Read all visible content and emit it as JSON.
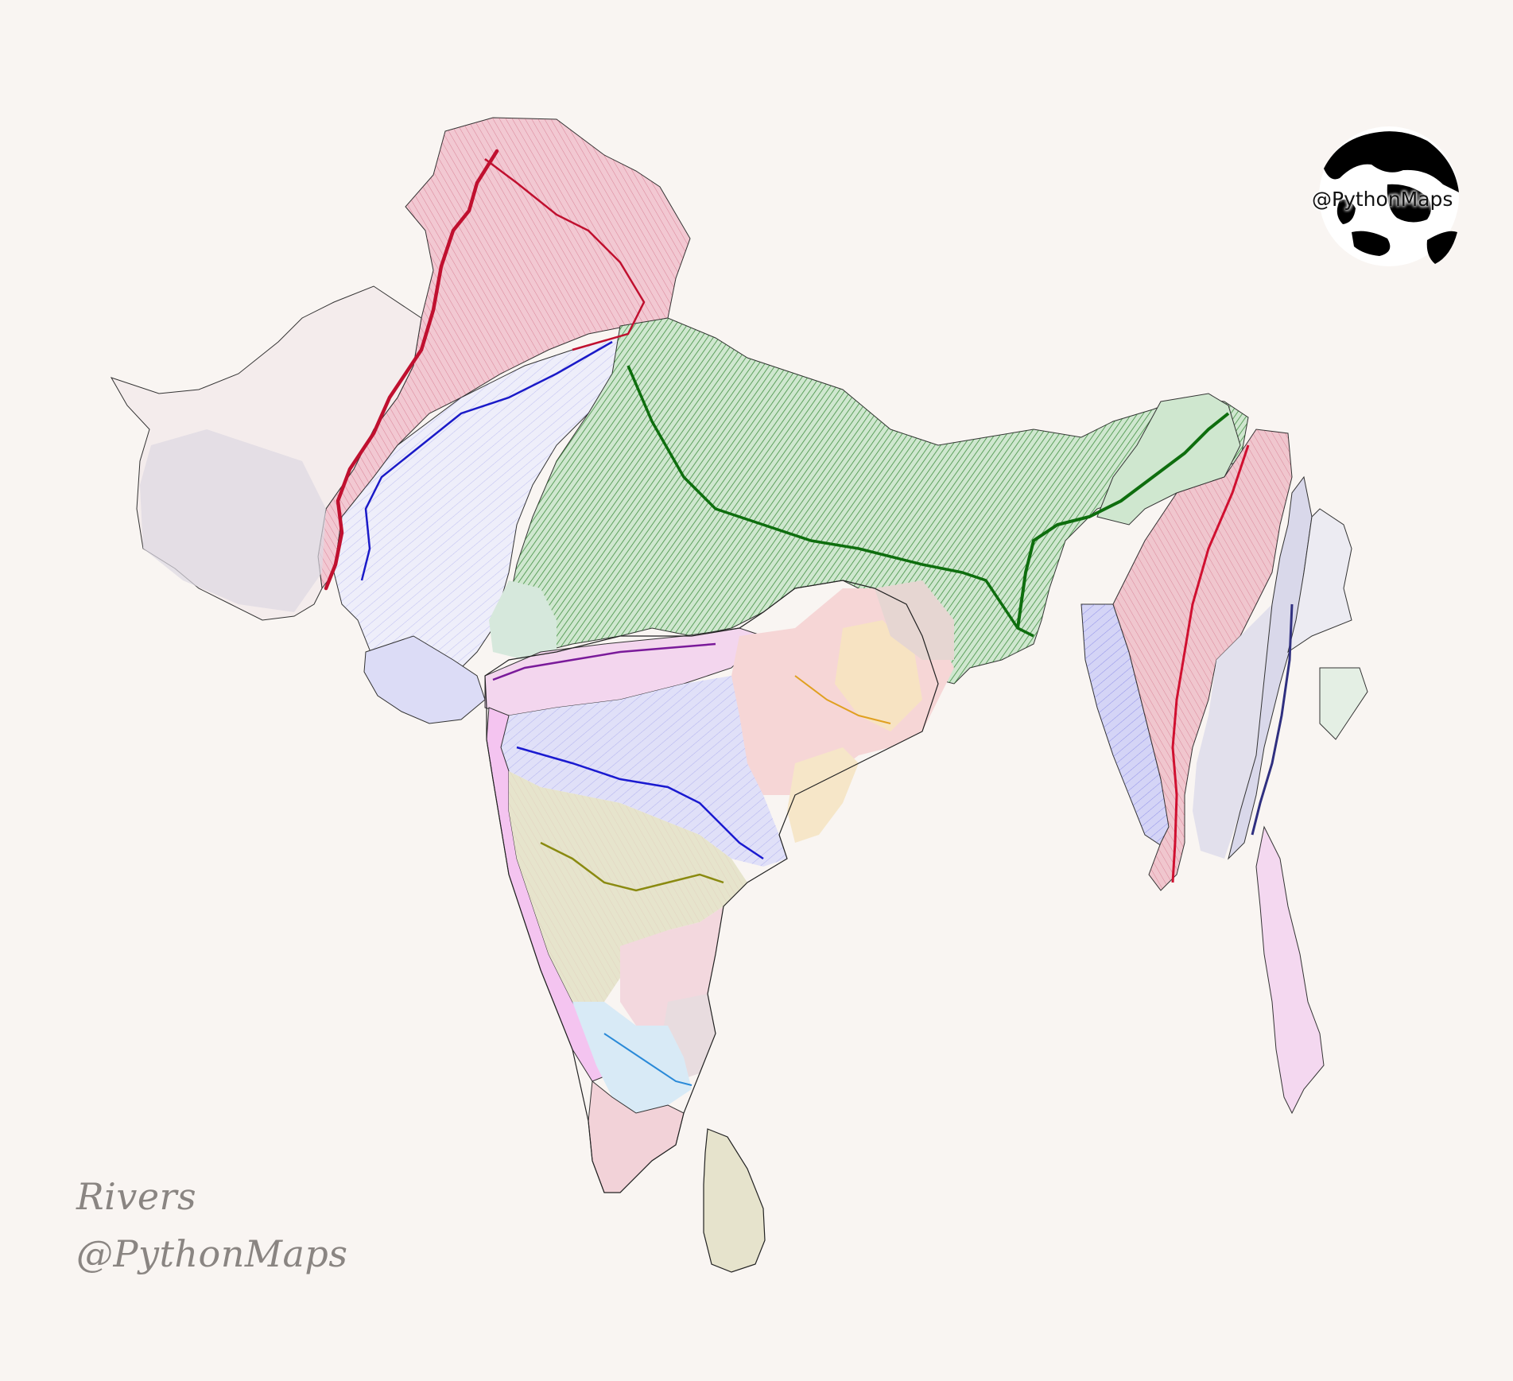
{
  "caption": {
    "title": "Rivers",
    "handle": "@PythonMaps"
  },
  "logo": {
    "text": "@PythonMaps",
    "icon": "globe-icon"
  },
  "colors": {
    "background": "#f9f5f2",
    "indus": "#c0102f",
    "indus_basin": "#d9728a",
    "ganges_brahmaputra": "#0e6e0e",
    "thar_blue": "#2a2ad0",
    "narmada": "#e070d0",
    "mahanadi": "#f0c070",
    "godavari": "#3a3ad8",
    "krishna": "#8a8a20",
    "kaveri": "#3a9ad8",
    "pennar": "#d08090",
    "west_coast": "#e060e0",
    "irrawaddy": "#d01030",
    "salween": "#303080",
    "arakan": "#2a2ad0",
    "sri_lanka": "#b8b080",
    "tenasserim": "#e080e0"
  }
}
